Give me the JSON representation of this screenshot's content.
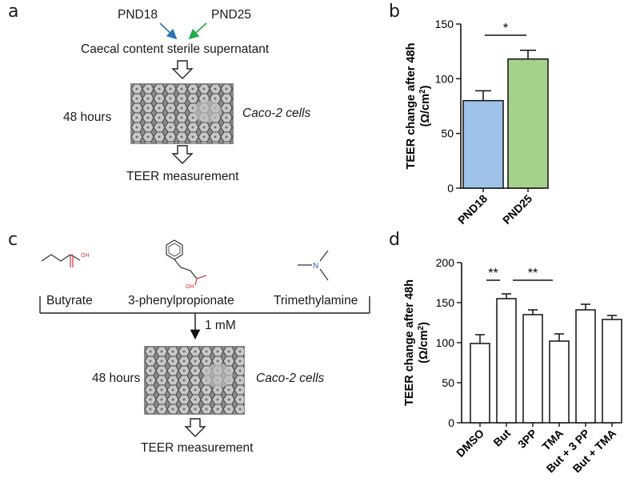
{
  "panels": {
    "a": {
      "letter": "a",
      "label_pnd18": "PND18",
      "label_pnd25": "PND25",
      "supernatant": "Caecal content sterile supernatant",
      "time": "48 hours",
      "cells": "Caco-2 cells",
      "measurement": "TEER measurement",
      "colors": {
        "pnd18": "#2e75b6",
        "pnd25": "#22aa44"
      }
    },
    "b": {
      "letter": "b"
    },
    "c": {
      "letter": "c",
      "compounds": [
        "Butyrate",
        "3-phenylpropionate",
        "Trimethylamine"
      ],
      "structure_labels": {
        "oh": "OH",
        "n": "N"
      },
      "concentration": "1 mM",
      "time": "48 hours",
      "cells": "Caco-2 cells",
      "measurement": "TEER measurement"
    },
    "d": {
      "letter": "d"
    }
  },
  "chart_data": [
    {
      "id": "b",
      "type": "bar",
      "categories": [
        "PND18",
        "PND25"
      ],
      "values": [
        80,
        118
      ],
      "errors": [
        9,
        8
      ],
      "colors": [
        "#9ec2e8",
        "#a6d18a"
      ],
      "ylabel_line1": "TEER change after 48h",
      "ylabel_line2_prefix": "(Ω/cm",
      "ylabel_sup": "2",
      "ylabel_line2_suffix": ")",
      "ylim": [
        0,
        150
      ],
      "yticks": [
        0,
        50,
        100,
        150
      ],
      "significance": [
        {
          "from": 0,
          "to": 1,
          "label": "*"
        }
      ]
    },
    {
      "id": "d",
      "type": "bar",
      "categories": [
        "DMSO",
        "But",
        "3PP",
        "TMA",
        "But + 3 PP",
        "But + TMA"
      ],
      "values": [
        99,
        155,
        135,
        102,
        141,
        129
      ],
      "errors": [
        11,
        6,
        6,
        9,
        7,
        5
      ],
      "colors": [
        "#ffffff",
        "#ffffff",
        "#ffffff",
        "#ffffff",
        "#ffffff",
        "#ffffff"
      ],
      "ylabel_line1": "TEER change after 48h",
      "ylabel_line2_prefix": "(Ω/cm",
      "ylabel_sup": "2",
      "ylabel_line2_suffix": ")",
      "ylim": [
        0,
        200
      ],
      "yticks": [
        0,
        50,
        100,
        150,
        200
      ],
      "significance": [
        {
          "from": 0,
          "to": 1,
          "label": "**"
        },
        {
          "from": 1,
          "to": 3,
          "label": "**"
        }
      ]
    }
  ]
}
